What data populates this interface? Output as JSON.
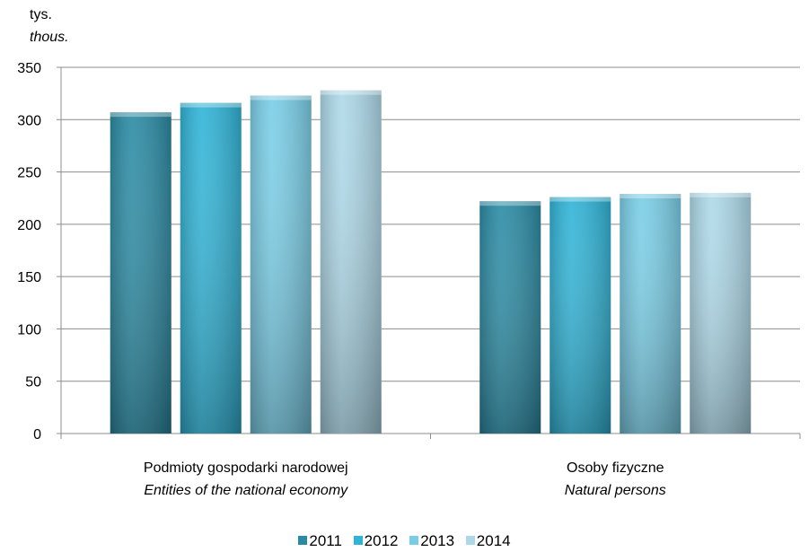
{
  "chart_data": {
    "type": "bar",
    "unit_label": "tys.",
    "unit_label_en": "thous.",
    "categories": [
      {
        "pl": "Podmioty gospodarki narodowej",
        "en": "Entities of the national economy"
      },
      {
        "pl": "Osoby fizyczne",
        "en": "Natural persons"
      }
    ],
    "series": [
      {
        "name": "2011",
        "values": [
          307,
          222
        ],
        "color": "#2a8aa3"
      },
      {
        "name": "2012",
        "values": [
          316,
          226
        ],
        "color": "#2fb3d6"
      },
      {
        "name": "2013",
        "values": [
          323,
          229
        ],
        "color": "#79cde6"
      },
      {
        "name": "2014",
        "values": [
          328,
          230
        ],
        "color": "#add8e8"
      }
    ],
    "ylim": [
      0,
      350
    ],
    "yticks": [
      "0",
      "50",
      "100",
      "150",
      "200",
      "250",
      "300",
      "350"
    ],
    "grid": true,
    "legend_position": "bottom"
  }
}
